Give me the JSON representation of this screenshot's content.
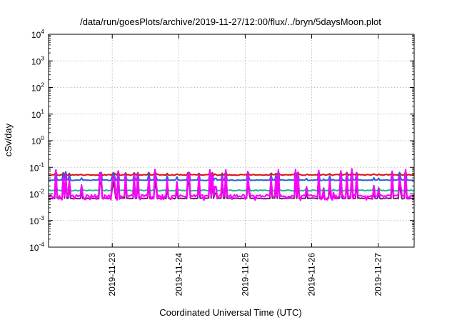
{
  "chart_data": {
    "type": "line",
    "title": "/data/run/goesPlots/archive/2019-11-27/12:00/flux/../bryn/5daysMoon.plot",
    "xlabel": "Coordinated Universal Time (UTC)",
    "ylabel": "cSv/day",
    "x_range": [
      "2019-11-22T01:00",
      "2019-11-27T13:00"
    ],
    "x_ticks": [
      "2019-11-23",
      "2019-11-24",
      "2019-11-25",
      "2019-11-26",
      "2019-11-27"
    ],
    "y_scale": "log",
    "ylim": [
      0.0001,
      10000
    ],
    "y_ticks": [
      {
        "base": "10",
        "exp": "-4"
      },
      {
        "base": "10",
        "exp": "-3"
      },
      {
        "base": "10",
        "exp": "-2"
      },
      {
        "base": "10",
        "exp": "-1"
      },
      {
        "base": "10",
        "exp": "0"
      },
      {
        "base": "10",
        "exp": "1"
      },
      {
        "base": "10",
        "exp": "2"
      },
      {
        "base": "10",
        "exp": "3"
      },
      {
        "base": "10",
        "exp": "4"
      }
    ],
    "grid": true,
    "legend": "none",
    "series": [
      {
        "color": "#dd1111",
        "base": 0.052,
        "spike": 0.018,
        "noise": 0.004
      },
      {
        "color": "#2a5fd8",
        "base": 0.033,
        "spike": 0.045,
        "noise": 0.002
      },
      {
        "color": "#22b58e",
        "base": 0.0135,
        "spike": 0.035,
        "noise": 0.0012
      },
      {
        "color": "#7a1a7a",
        "base": 0.0068,
        "spike": 0.03,
        "noise": 0.0005
      },
      {
        "color": "#ff00ff",
        "base": 0.0085,
        "spike": 0.08,
        "noise": 0.0015
      }
    ]
  }
}
